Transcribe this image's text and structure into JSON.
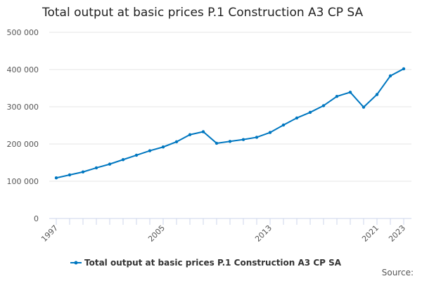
{
  "chart_data": {
    "type": "line",
    "title": "Total output at basic prices P.1 Construction A3 CP SA",
    "x": [
      1997,
      1998,
      1999,
      2000,
      2001,
      2002,
      2003,
      2004,
      2005,
      2006,
      2007,
      2008,
      2009,
      2010,
      2011,
      2012,
      2013,
      2014,
      2015,
      2016,
      2017,
      2018,
      2019,
      2020,
      2021,
      2022,
      2023
    ],
    "series": [
      {
        "name": "Total output at basic prices P.1 Construction A3 CP SA",
        "values": [
          109000,
          117000,
          125000,
          136000,
          146000,
          158000,
          170000,
          182000,
          192000,
          206000,
          225000,
          233000,
          202000,
          207000,
          212000,
          218000,
          231000,
          251000,
          270000,
          285000,
          303000,
          328000,
          339000,
          299000,
          333000,
          383000,
          402000
        ],
        "color": "#0077c0"
      }
    ],
    "ylim": [
      0,
      500000
    ],
    "y_ticks": [
      "0",
      "100 000",
      "200 000",
      "300 000",
      "400 000",
      "500 000"
    ],
    "x_tick_labels": [
      "1997",
      "2005",
      "2013",
      "2021",
      "2023"
    ],
    "grid": true,
    "legend_position": "bottom",
    "source_label": "Source:"
  }
}
